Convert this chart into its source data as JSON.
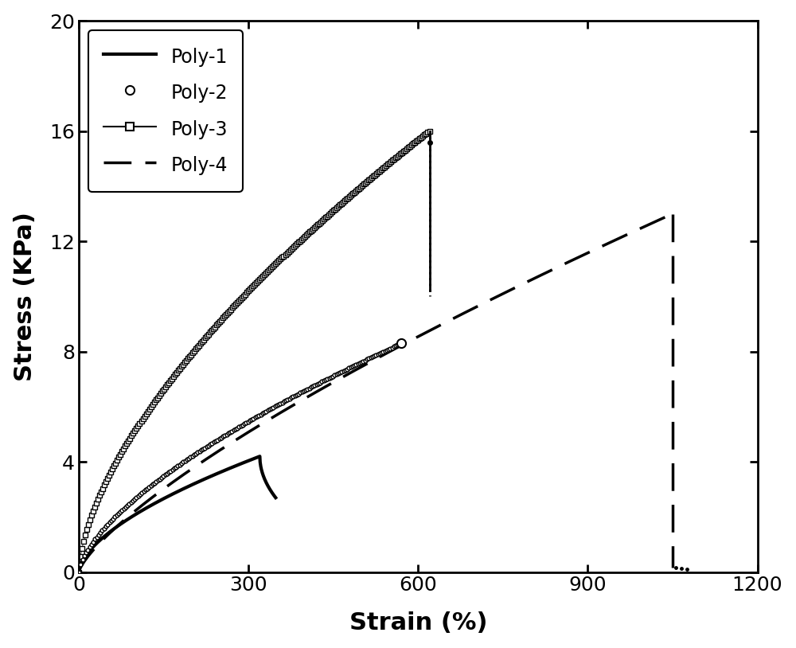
{
  "title": "",
  "xlabel": "Strain (%)",
  "ylabel": "Stress (KPa)",
  "xlim": [
    0,
    1200
  ],
  "ylim": [
    0,
    20
  ],
  "xticks": [
    0,
    300,
    600,
    900,
    1200
  ],
  "yticks": [
    0,
    4,
    8,
    12,
    16,
    20
  ],
  "background_color": "#ffffff",
  "legend": {
    "poly1_label": "Poly-1",
    "poly2_label": "Poly-2",
    "poly3_label": "Poly-3",
    "poly4_label": "Poly-4"
  }
}
